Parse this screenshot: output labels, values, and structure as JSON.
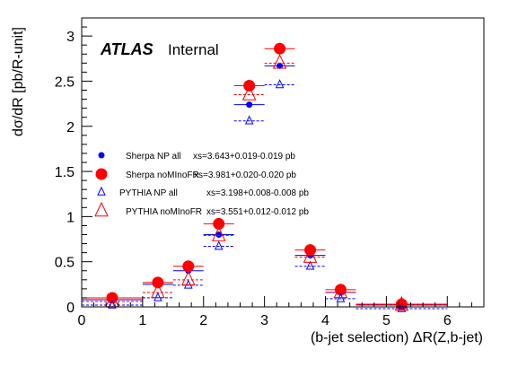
{
  "header": {
    "experiment": "ATLAS",
    "status": "Internal"
  },
  "chart_data": {
    "type": "scatter",
    "xlabel": "(b-jet selection) ΔR(Z,b-jet)",
    "ylabel": "dσ/dR [pb/R-unit]",
    "xlim": [
      0,
      6.6
    ],
    "ylim": [
      0,
      3.2
    ],
    "xticks": [
      "0",
      "1",
      "2",
      "3",
      "4",
      "5",
      "6"
    ],
    "yticks": [
      "0",
      "0.5",
      "1",
      "1.5",
      "2",
      "2.5",
      "3"
    ],
    "bins": [
      [
        0,
        1
      ],
      [
        1,
        1.5
      ],
      [
        1.5,
        2
      ],
      [
        2,
        2.5
      ],
      [
        2.5,
        3
      ],
      [
        3,
        3.5
      ],
      [
        3.5,
        4
      ],
      [
        4,
        4.5
      ],
      [
        4.5,
        6
      ]
    ],
    "x": [
      0.5,
      1.25,
      1.75,
      2.25,
      2.75,
      3.25,
      3.75,
      4.25,
      5.25
    ],
    "legend_position": "middle-left",
    "series": [
      {
        "name": "Sherpa NP all",
        "xs": "xs=3.643+0.019-0.019 pb",
        "color": "#0000ff",
        "marker": "dot-small",
        "values": [
          0.08,
          0.25,
          0.4,
          0.8,
          2.24,
          2.67,
          0.57,
          0.16,
          0.02
        ]
      },
      {
        "name": "Sherpa noMInoFR",
        "xs": "xs=3.981+0.020-0.020 pb",
        "color": "#ff0000",
        "marker": "dot-large",
        "values": [
          0.1,
          0.27,
          0.45,
          0.92,
          2.45,
          2.86,
          0.63,
          0.19,
          0.03
        ]
      },
      {
        "name": "PYTHIA NP all",
        "xs": "xs=3.198+0.008-0.008 pb",
        "color": "#0000ff",
        "marker": "triangle-small",
        "values": [
          0.06,
          0.14,
          0.28,
          0.71,
          2.1,
          2.5,
          0.49,
          0.13,
          0.02
        ]
      },
      {
        "name": "PYTHIA noMInoFR",
        "xs": "xs=3.551+0.012-0.012 pb",
        "color": "#ff0000",
        "marker": "triangle-large",
        "values": [
          0.06,
          0.16,
          0.3,
          0.79,
          2.35,
          2.7,
          0.55,
          0.16,
          0.02
        ]
      }
    ]
  }
}
